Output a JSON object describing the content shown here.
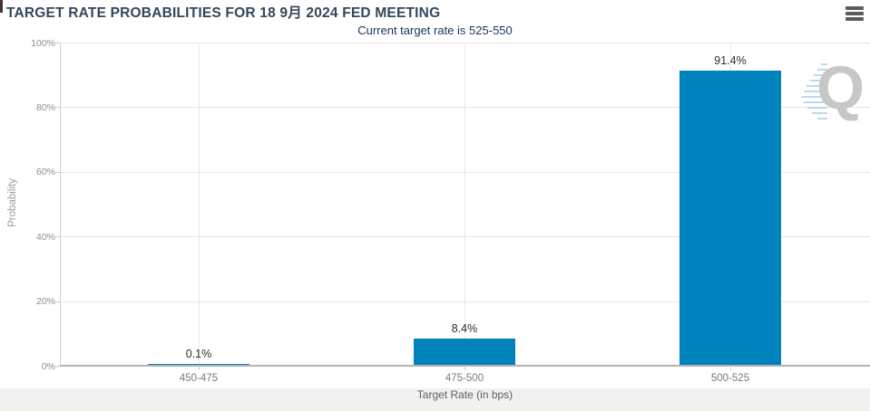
{
  "header": {
    "title": "TARGET RATE PROBABILITIES FOR 18 9月 2024 FED MEETING",
    "subtitle": "Current target rate is 525-550",
    "menu_icon": "hamburger-icon"
  },
  "chart_data": {
    "type": "bar",
    "title": "TARGET RATE PROBABILITIES FOR 18 9月 2024 FED MEETING",
    "subtitle": "Current target rate is 525-550",
    "categories": [
      "450-475",
      "475-500",
      "500-525"
    ],
    "values": [
      0.1,
      8.4,
      91.4
    ],
    "value_labels": [
      "0.1%",
      "8.4%",
      "91.4%"
    ],
    "xlabel": "Target Rate (in bps)",
    "ylabel": "Probability",
    "ylim": [
      0,
      100
    ],
    "ytick_labels": [
      "0%",
      "20%",
      "40%",
      "60%",
      "80%",
      "100%"
    ],
    "grid": true,
    "legend": false,
    "bar_color": "#0082bd"
  },
  "watermark": {
    "letter": "Q"
  },
  "colors": {
    "bar": "#0082bd",
    "title_text": "#33475b",
    "subtitle_text": "#17355d",
    "axis_text": "#8c8c8c",
    "gridline": "#e6e6e6",
    "background": "#ffffff",
    "footer_strip": "#f1f1ef"
  }
}
